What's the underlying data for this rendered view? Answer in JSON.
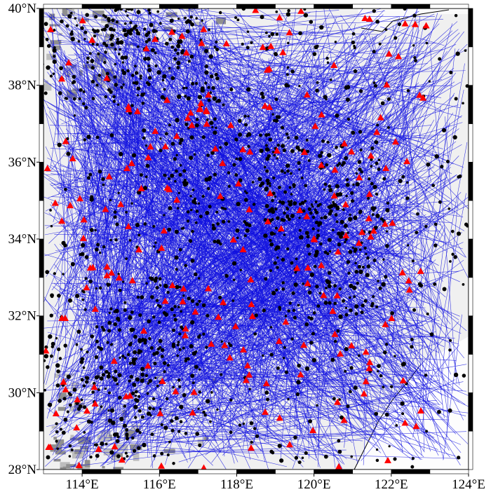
{
  "chart_data": {
    "type": "map",
    "xlim": [
      113,
      124
    ],
    "ylim": [
      28,
      40
    ],
    "xticks": [
      {
        "value": 114,
        "label": "114°E"
      },
      {
        "value": 116,
        "label": "116°E"
      },
      {
        "value": 118,
        "label": "118°E"
      },
      {
        "value": 120,
        "label": "120°E"
      },
      {
        "value": 122,
        "label": "122°E"
      },
      {
        "value": 124,
        "label": "124°E"
      }
    ],
    "yticks": [
      {
        "value": 28,
        "label": "28°N"
      },
      {
        "value": 30,
        "label": "30°N"
      },
      {
        "value": 32,
        "label": "32°N"
      },
      {
        "value": 34,
        "label": "34°N"
      },
      {
        "value": 36,
        "label": "36°N"
      },
      {
        "value": 38,
        "label": "38°N"
      },
      {
        "value": 40,
        "label": "40°N"
      }
    ]
  }
}
